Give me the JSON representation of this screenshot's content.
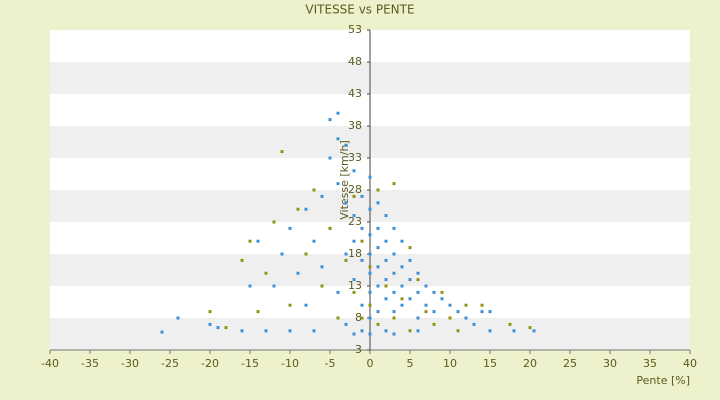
{
  "chart_data": {
    "type": "scatter",
    "title": "VITESSE vs PENTE",
    "x_label": "Pente [%]",
    "y_label": "Vitesse [km/h]",
    "xlim": [
      -40,
      40
    ],
    "xticks": [
      -40,
      -35,
      -30,
      -25,
      -20,
      -15,
      -10,
      -5,
      0,
      5,
      10,
      15,
      20,
      25,
      30,
      35,
      40
    ],
    "ylim": [
      3,
      53
    ],
    "yticks": [
      3,
      8,
      13,
      18,
      23,
      28,
      33,
      38,
      43,
      48,
      53
    ],
    "grid": true,
    "series": [
      {
        "color": "#3d8fd6",
        "x": [
          -26,
          -24,
          -20,
          -19,
          -15,
          -14,
          -12,
          -11,
          -10,
          -10,
          -9,
          -8,
          -8,
          -7,
          -7,
          -6,
          -6,
          -5,
          -5,
          -5,
          -4,
          -4,
          -4,
          -4,
          -3,
          -3,
          -3,
          -3,
          -2,
          -2,
          -2,
          -2,
          -1,
          -1,
          -1,
          -1,
          -1,
          0,
          0,
          0,
          0,
          0,
          0,
          0,
          0,
          1,
          1,
          1,
          1,
          1,
          1,
          2,
          2,
          2,
          2,
          2,
          2,
          3,
          3,
          3,
          3,
          3,
          4,
          4,
          4,
          4,
          5,
          5,
          5,
          6,
          6,
          6,
          7,
          7,
          8,
          8,
          9,
          10,
          11,
          12,
          13,
          14,
          15,
          15,
          20.5,
          18,
          -16,
          -13,
          -2,
          3,
          6
        ],
        "values": [
          5.8,
          8,
          7,
          6.5,
          13,
          20,
          13,
          18,
          22,
          6,
          15,
          25,
          10,
          20,
          6,
          27,
          16,
          39,
          33,
          22,
          40,
          36,
          29,
          12,
          35,
          26,
          18,
          7,
          31,
          24,
          20,
          14,
          27,
          22,
          17,
          10,
          6,
          30,
          25,
          21,
          18,
          15,
          12,
          8,
          5.5,
          26,
          22,
          19,
          16,
          13,
          9,
          24,
          20,
          17,
          14,
          11,
          6,
          22,
          18,
          15,
          12,
          9,
          20,
          16,
          13,
          10,
          17,
          14,
          11,
          15,
          12,
          8,
          13,
          10,
          12,
          9,
          11,
          10,
          9,
          8,
          7,
          9,
          9,
          6,
          6,
          6,
          6,
          6,
          5.5,
          5.5,
          6
        ]
      },
      {
        "color": "#8f9410",
        "x": [
          -20,
          -18,
          -15,
          -13,
          -12,
          -11,
          -10,
          -9,
          -8,
          -7,
          -6,
          -5,
          -4,
          -3,
          -2,
          -2,
          -1,
          -1,
          0,
          0,
          1,
          1,
          2,
          3,
          3,
          4,
          5,
          5,
          6,
          7,
          8,
          9,
          10,
          11,
          12,
          14,
          17.5,
          20,
          -16,
          -14
        ],
        "values": [
          9,
          6.5,
          20,
          15,
          23,
          34,
          10,
          25,
          18,
          28,
          13,
          22,
          8,
          17,
          12,
          27,
          20,
          8,
          16,
          10,
          28,
          7,
          13,
          29,
          8,
          11,
          19,
          6,
          14,
          9,
          7,
          12,
          8,
          6,
          10,
          10,
          7,
          6.5,
          17,
          9
        ]
      }
    ]
  }
}
